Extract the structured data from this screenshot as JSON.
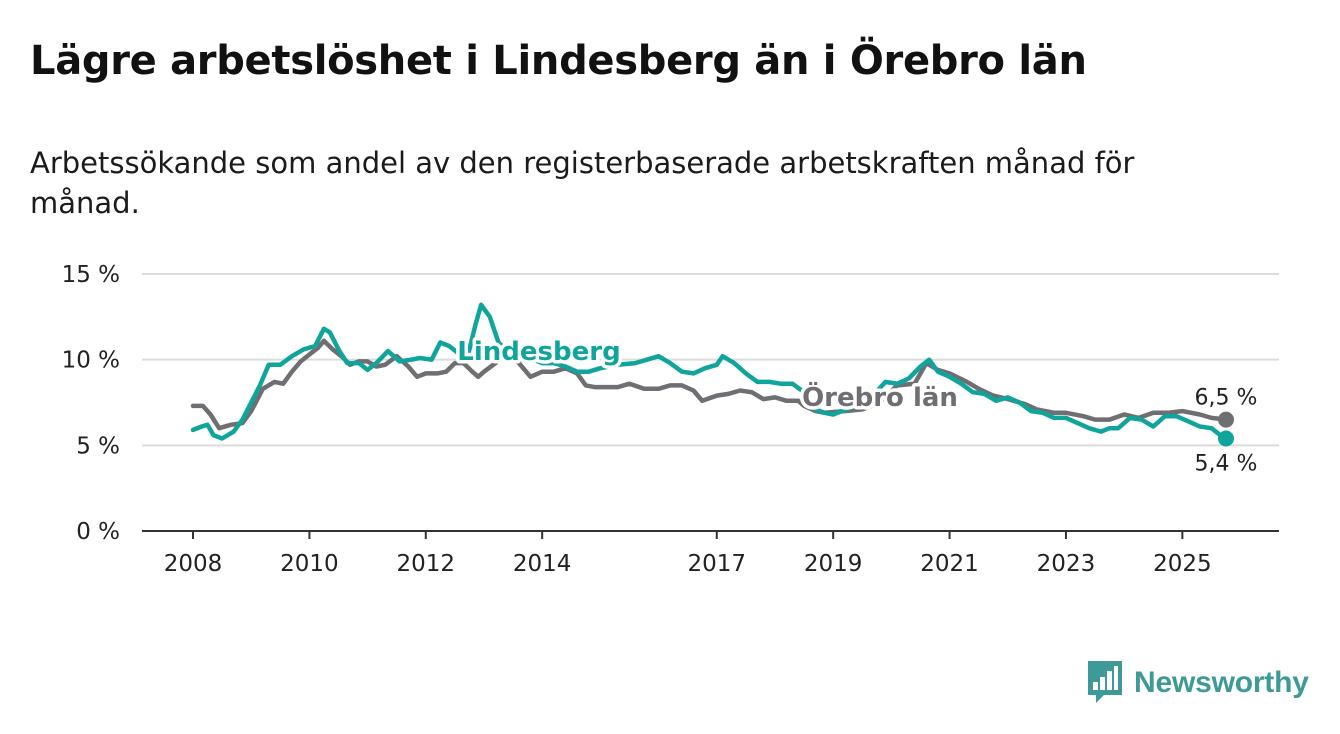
{
  "title": "Lägre arbetslöshet i Lindesberg än i Örebro län",
  "subtitle": "Arbetssökande som andel av den registerbaserade arbetskraften månad för månad.",
  "brand": {
    "name": "Newsworthy",
    "icon": "bar-chart-logo-icon",
    "color": "#3e9a96"
  },
  "chart_data": {
    "type": "line",
    "title": "Lägre arbetslöshet i Lindesberg än i Örebro län",
    "xlabel": "",
    "ylabel": "",
    "ylim": [
      0,
      15
    ],
    "xlim": [
      2008,
      2025.75
    ],
    "y_ticks": [
      {
        "value": 0,
        "label": "0 %"
      },
      {
        "value": 5,
        "label": "5 %"
      },
      {
        "value": 10,
        "label": "10 %"
      },
      {
        "value": 15,
        "label": "15 %"
      }
    ],
    "x_ticks": [
      {
        "value": 2008,
        "label": "2008"
      },
      {
        "value": 2010,
        "label": "2010"
      },
      {
        "value": 2012,
        "label": "2012"
      },
      {
        "value": 2014,
        "label": "2014"
      },
      {
        "value": 2017,
        "label": "2017"
      },
      {
        "value": 2019,
        "label": "2019"
      },
      {
        "value": 2021,
        "label": "2021"
      },
      {
        "value": 2023,
        "label": "2023"
      },
      {
        "value": 2025,
        "label": "2025"
      }
    ],
    "grid": true,
    "series": [
      {
        "name": "Örebro län",
        "color": "#6e6e73",
        "label": "Örebro län",
        "end_label": "6,5 %",
        "points": [
          [
            2008.0,
            7.3
          ],
          [
            2008.17,
            7.3
          ],
          [
            2008.3,
            6.8
          ],
          [
            2008.45,
            6.0
          ],
          [
            2008.65,
            6.2
          ],
          [
            2008.85,
            6.3
          ],
          [
            2009.0,
            7.0
          ],
          [
            2009.2,
            8.3
          ],
          [
            2009.4,
            8.7
          ],
          [
            2009.55,
            8.6
          ],
          [
            2009.7,
            9.3
          ],
          [
            2009.85,
            9.9
          ],
          [
            2010.0,
            10.3
          ],
          [
            2010.15,
            10.7
          ],
          [
            2010.25,
            11.1
          ],
          [
            2010.4,
            10.6
          ],
          [
            2010.55,
            10.2
          ],
          [
            2010.7,
            9.7
          ],
          [
            2010.85,
            9.9
          ],
          [
            2011.0,
            9.9
          ],
          [
            2011.15,
            9.6
          ],
          [
            2011.3,
            9.7
          ],
          [
            2011.5,
            10.2
          ],
          [
            2011.7,
            9.6
          ],
          [
            2011.85,
            9.0
          ],
          [
            2012.0,
            9.2
          ],
          [
            2012.2,
            9.2
          ],
          [
            2012.35,
            9.3
          ],
          [
            2012.5,
            9.8
          ],
          [
            2012.65,
            9.8
          ],
          [
            2012.8,
            9.3
          ],
          [
            2012.9,
            9.0
          ],
          [
            2013.0,
            9.3
          ],
          [
            2013.2,
            9.8
          ],
          [
            2013.4,
            10.5
          ],
          [
            2013.6,
            9.8
          ],
          [
            2013.8,
            9.0
          ],
          [
            2014.0,
            9.3
          ],
          [
            2014.2,
            9.3
          ],
          [
            2014.4,
            9.5
          ],
          [
            2014.6,
            9.2
          ],
          [
            2014.75,
            8.5
          ],
          [
            2014.9,
            8.4
          ],
          [
            2015.1,
            8.4
          ],
          [
            2015.3,
            8.4
          ],
          [
            2015.5,
            8.6
          ],
          [
            2015.75,
            8.3
          ],
          [
            2016.0,
            8.3
          ],
          [
            2016.2,
            8.5
          ],
          [
            2016.4,
            8.5
          ],
          [
            2016.6,
            8.2
          ],
          [
            2016.75,
            7.6
          ],
          [
            2017.0,
            7.9
          ],
          [
            2017.2,
            8.0
          ],
          [
            2017.4,
            8.2
          ],
          [
            2017.6,
            8.1
          ],
          [
            2017.8,
            7.7
          ],
          [
            2018.0,
            7.8
          ],
          [
            2018.2,
            7.6
          ],
          [
            2018.4,
            7.6
          ],
          [
            2018.5,
            7.3
          ],
          [
            2018.7,
            7.0
          ],
          [
            2018.85,
            6.9
          ],
          [
            2019.2,
            7.0
          ],
          [
            2019.5,
            7.1
          ],
          [
            2019.8,
            7.5
          ],
          [
            2020.1,
            8.5
          ],
          [
            2020.4,
            8.6
          ],
          [
            2020.6,
            9.8
          ],
          [
            2020.8,
            9.4
          ],
          [
            2021.0,
            9.2
          ],
          [
            2021.3,
            8.7
          ],
          [
            2021.5,
            8.3
          ],
          [
            2021.75,
            7.9
          ],
          [
            2022.0,
            7.7
          ],
          [
            2022.3,
            7.4
          ],
          [
            2022.5,
            7.1
          ],
          [
            2022.8,
            6.9
          ],
          [
            2023.0,
            6.9
          ],
          [
            2023.3,
            6.7
          ],
          [
            2023.5,
            6.5
          ],
          [
            2023.75,
            6.5
          ],
          [
            2024.0,
            6.8
          ],
          [
            2024.25,
            6.6
          ],
          [
            2024.5,
            6.9
          ],
          [
            2024.75,
            6.9
          ],
          [
            2025.0,
            7.0
          ],
          [
            2025.3,
            6.8
          ],
          [
            2025.5,
            6.6
          ],
          [
            2025.75,
            6.5
          ]
        ]
      },
      {
        "name": "Lindesberg",
        "color": "#10a59c",
        "label": "Lindesberg",
        "end_label": "5,4 %",
        "points": [
          [
            2008.0,
            5.9
          ],
          [
            2008.15,
            6.1
          ],
          [
            2008.25,
            6.2
          ],
          [
            2008.35,
            5.6
          ],
          [
            2008.5,
            5.4
          ],
          [
            2008.7,
            5.8
          ],
          [
            2008.85,
            6.5
          ],
          [
            2009.0,
            7.5
          ],
          [
            2009.15,
            8.5
          ],
          [
            2009.3,
            9.7
          ],
          [
            2009.5,
            9.7
          ],
          [
            2009.7,
            10.2
          ],
          [
            2009.9,
            10.6
          ],
          [
            2010.1,
            10.8
          ],
          [
            2010.25,
            11.8
          ],
          [
            2010.35,
            11.6
          ],
          [
            2010.5,
            10.6
          ],
          [
            2010.65,
            9.8
          ],
          [
            2010.85,
            9.8
          ],
          [
            2011.0,
            9.4
          ],
          [
            2011.15,
            9.8
          ],
          [
            2011.35,
            10.5
          ],
          [
            2011.55,
            9.9
          ],
          [
            2011.75,
            10.0
          ],
          [
            2011.9,
            10.1
          ],
          [
            2012.1,
            10.0
          ],
          [
            2012.25,
            11.0
          ],
          [
            2012.4,
            10.8
          ],
          [
            2012.55,
            10.4
          ],
          [
            2012.7,
            9.9
          ],
          [
            2012.85,
            12.0
          ],
          [
            2012.95,
            13.2
          ],
          [
            2013.1,
            12.5
          ],
          [
            2013.25,
            11.0
          ],
          [
            2013.45,
            10.3
          ],
          [
            2013.65,
            10.0
          ],
          [
            2013.85,
            10.0
          ],
          [
            2014.0,
            9.8
          ],
          [
            2014.2,
            9.8
          ],
          [
            2014.4,
            9.6
          ],
          [
            2014.6,
            9.3
          ],
          [
            2014.8,
            9.3
          ],
          [
            2015.0,
            9.5
          ],
          [
            2015.3,
            9.7
          ],
          [
            2015.6,
            9.8
          ],
          [
            2015.8,
            10.0
          ],
          [
            2016.0,
            10.2
          ],
          [
            2016.2,
            9.8
          ],
          [
            2016.4,
            9.3
          ],
          [
            2016.6,
            9.2
          ],
          [
            2016.8,
            9.5
          ],
          [
            2017.0,
            9.7
          ],
          [
            2017.1,
            10.2
          ],
          [
            2017.3,
            9.8
          ],
          [
            2017.5,
            9.2
          ],
          [
            2017.7,
            8.7
          ],
          [
            2017.9,
            8.7
          ],
          [
            2018.1,
            8.6
          ],
          [
            2018.3,
            8.6
          ],
          [
            2018.5,
            8.1
          ],
          [
            2018.7,
            7.1
          ],
          [
            2018.85,
            6.9
          ],
          [
            2019.0,
            6.8
          ],
          [
            2019.3,
            7.2
          ],
          [
            2019.6,
            7.6
          ],
          [
            2019.9,
            8.7
          ],
          [
            2020.1,
            8.6
          ],
          [
            2020.3,
            8.9
          ],
          [
            2020.5,
            9.6
          ],
          [
            2020.65,
            10.0
          ],
          [
            2020.8,
            9.3
          ],
          [
            2021.0,
            9.0
          ],
          [
            2021.2,
            8.6
          ],
          [
            2021.4,
            8.1
          ],
          [
            2021.6,
            8.0
          ],
          [
            2021.8,
            7.6
          ],
          [
            2022.0,
            7.8
          ],
          [
            2022.2,
            7.5
          ],
          [
            2022.4,
            7.0
          ],
          [
            2022.6,
            6.9
          ],
          [
            2022.8,
            6.6
          ],
          [
            2023.0,
            6.6
          ],
          [
            2023.2,
            6.3
          ],
          [
            2023.4,
            6.0
          ],
          [
            2023.6,
            5.8
          ],
          [
            2023.75,
            6.0
          ],
          [
            2023.9,
            6.0
          ],
          [
            2024.1,
            6.6
          ],
          [
            2024.3,
            6.5
          ],
          [
            2024.5,
            6.1
          ],
          [
            2024.7,
            6.7
          ],
          [
            2024.9,
            6.7
          ],
          [
            2025.1,
            6.4
          ],
          [
            2025.3,
            6.1
          ],
          [
            2025.5,
            6.0
          ],
          [
            2025.65,
            5.6
          ],
          [
            2025.75,
            5.4
          ]
        ]
      }
    ]
  }
}
